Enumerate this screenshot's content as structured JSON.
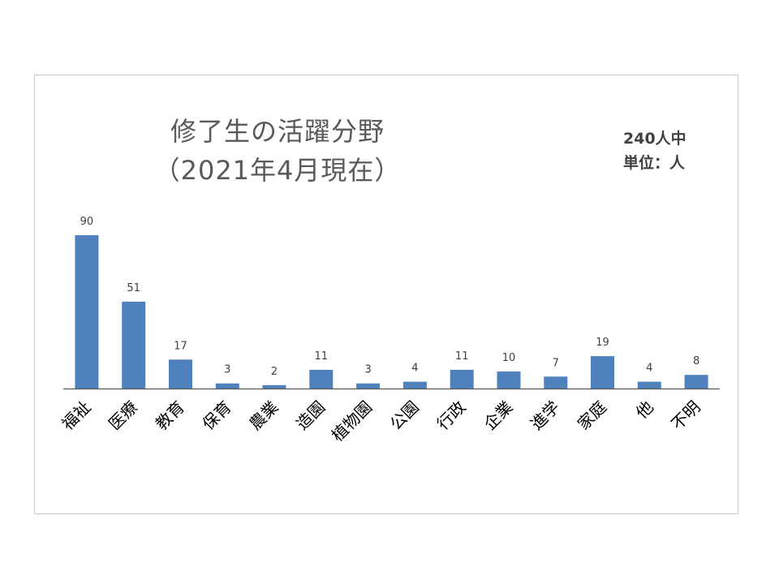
{
  "chart_data": {
    "type": "bar",
    "title": [
      "修了生の活躍分野",
      "（2021年4月現在）"
    ],
    "note": [
      "240人中",
      "単位：人"
    ],
    "categories": [
      "福祉",
      "医療",
      "教育",
      "保育",
      "農業",
      "造園",
      "植物園",
      "公園",
      "行政",
      "企業",
      "進学",
      "家庭",
      "他",
      "不明"
    ],
    "values": [
      90,
      51,
      17,
      3,
      2,
      11,
      3,
      4,
      11,
      10,
      7,
      19,
      4,
      8
    ],
    "ylim": [
      0,
      90
    ],
    "grid": false,
    "legend": "none",
    "bar_color": "#4f81bd",
    "axis_color": "#595959"
  }
}
